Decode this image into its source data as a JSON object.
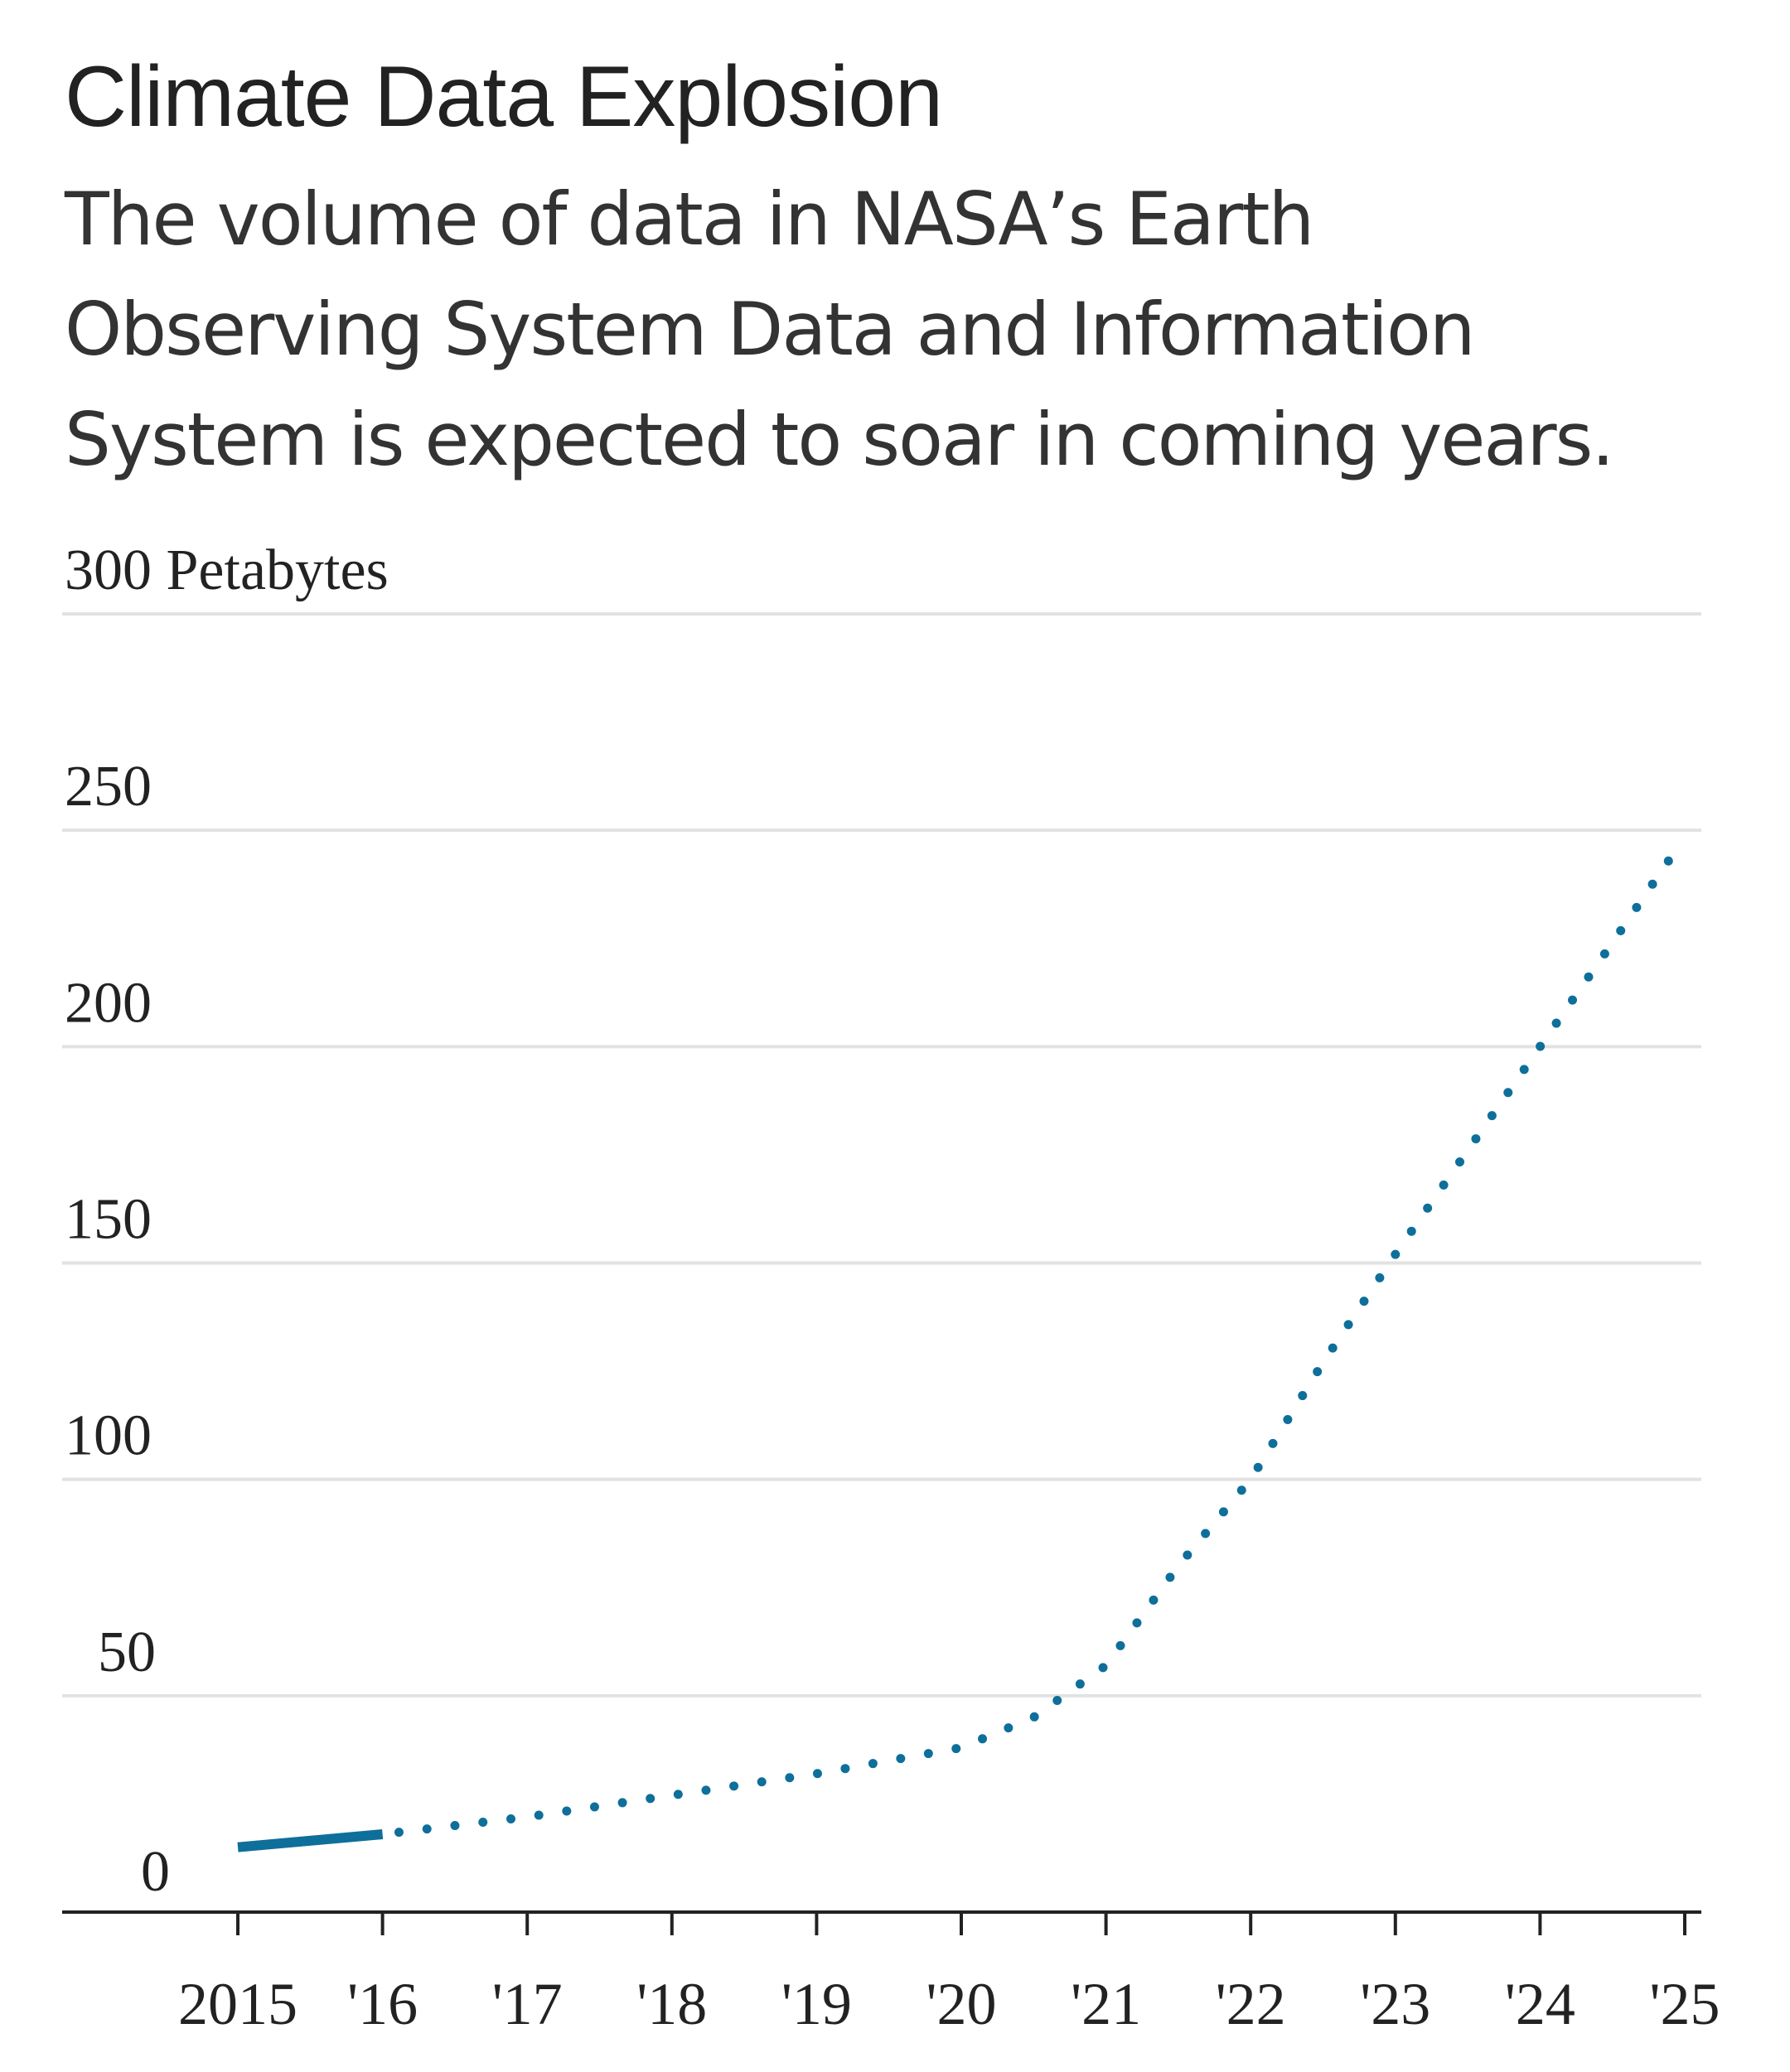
{
  "title": "Climate Data Explosion",
  "subtitle": "The volume of data in NASA’s Earth Observing System Data and Information System is expected to soar in coming years.",
  "colors": {
    "line": "#0e6f9a",
    "grid": "#e2e2e2",
    "axis": "#222222"
  },
  "chart_data": {
    "type": "line",
    "title": "Climate Data Explosion",
    "ylabel": "Petabytes",
    "ylim": [
      0,
      300
    ],
    "grid": true,
    "y_ticks": [
      0,
      50,
      100,
      150,
      200,
      250,
      300
    ],
    "y_tick_labels": [
      "0",
      "50",
      "100",
      "150",
      "200",
      "250",
      "300 Petabytes"
    ],
    "x_ticks": [
      2015,
      2016,
      2017,
      2018,
      2019,
      2020,
      2021,
      2022,
      2023,
      2024,
      2025
    ],
    "x_tick_labels": [
      "2015",
      "'16",
      "'17",
      "'18",
      "'19",
      "'20",
      "'21",
      "'22",
      "'23",
      "'24",
      "'25"
    ],
    "series": [
      {
        "style": "solid",
        "points": [
          [
            2015,
            15
          ],
          [
            2016,
            18
          ]
        ]
      },
      {
        "style": "dotted",
        "points": [
          [
            2016,
            18
          ],
          [
            2017,
            22
          ],
          [
            2018,
            27
          ],
          [
            2019,
            32
          ],
          [
            2020,
            38
          ],
          [
            2020.5,
            45
          ],
          [
            2021,
            57
          ],
          [
            2021.5,
            80
          ],
          [
            2022,
            100
          ],
          [
            2022.5,
            127
          ],
          [
            2023,
            152
          ],
          [
            2023.5,
            176
          ],
          [
            2024,
            200
          ],
          [
            2024.5,
            224
          ],
          [
            2024.95,
            246
          ]
        ]
      }
    ]
  }
}
